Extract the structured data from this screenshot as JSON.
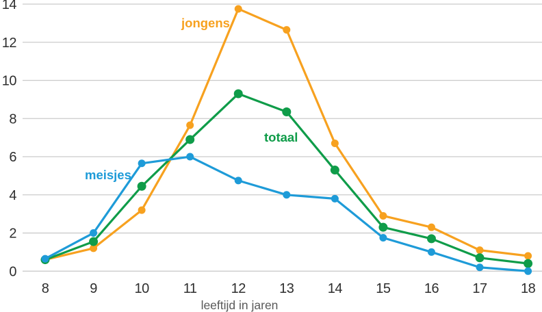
{
  "chart_data": {
    "type": "line",
    "title": "",
    "xlabel": "leeftijd in jaren",
    "ylabel": "",
    "x": [
      8,
      9,
      10,
      11,
      12,
      13,
      14,
      15,
      16,
      17,
      18
    ],
    "xlim": [
      8,
      18
    ],
    "ylim": [
      0,
      14
    ],
    "y_ticks": [
      0,
      2,
      4,
      6,
      8,
      10,
      12,
      14
    ],
    "grid": "horizontal-only",
    "legend": "inline-colored-labels",
    "series": [
      {
        "name": "jongens",
        "color": "#F7A11F",
        "values": [
          0.6,
          1.2,
          3.2,
          7.65,
          13.75,
          12.65,
          6.7,
          2.9,
          2.3,
          1.1,
          0.8
        ]
      },
      {
        "name": "totaal",
        "color": "#0F9C49",
        "values": [
          0.6,
          1.55,
          4.45,
          6.9,
          9.3,
          8.35,
          5.3,
          2.3,
          1.7,
          0.7,
          0.4
        ]
      },
      {
        "name": "meisjes",
        "color": "#1E9BD8",
        "values": [
          0.65,
          2.0,
          5.65,
          6.0,
          4.75,
          4.0,
          3.8,
          1.75,
          1.0,
          0.2,
          0.0
        ]
      }
    ],
    "colors": {
      "grid": "#cbcbcb",
      "tick_text": "#2e2e2e",
      "axis_label_text": "#595959",
      "background": "#ffffff"
    }
  }
}
